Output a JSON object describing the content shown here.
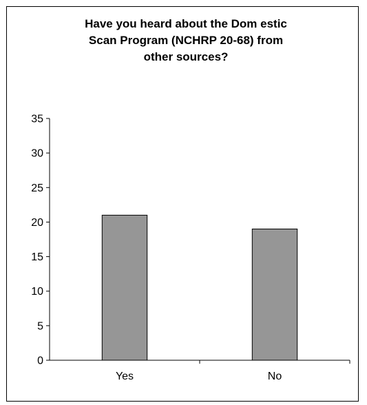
{
  "chart_data": {
    "type": "bar",
    "title_lines": [
      "Have you heard about the Dom estic",
      "Scan Program (NCHRP 20-68) from",
      "other sources?"
    ],
    "categories": [
      "Yes",
      "No"
    ],
    "values": [
      21,
      19
    ],
    "xlabel": "",
    "ylabel": "",
    "ylim": [
      0,
      35
    ],
    "yticks": [
      0,
      5,
      10,
      15,
      20,
      25,
      30,
      35
    ],
    "grid": false,
    "legend": "none",
    "bar_color": "#969696",
    "bar_edge_color": "#000000"
  }
}
